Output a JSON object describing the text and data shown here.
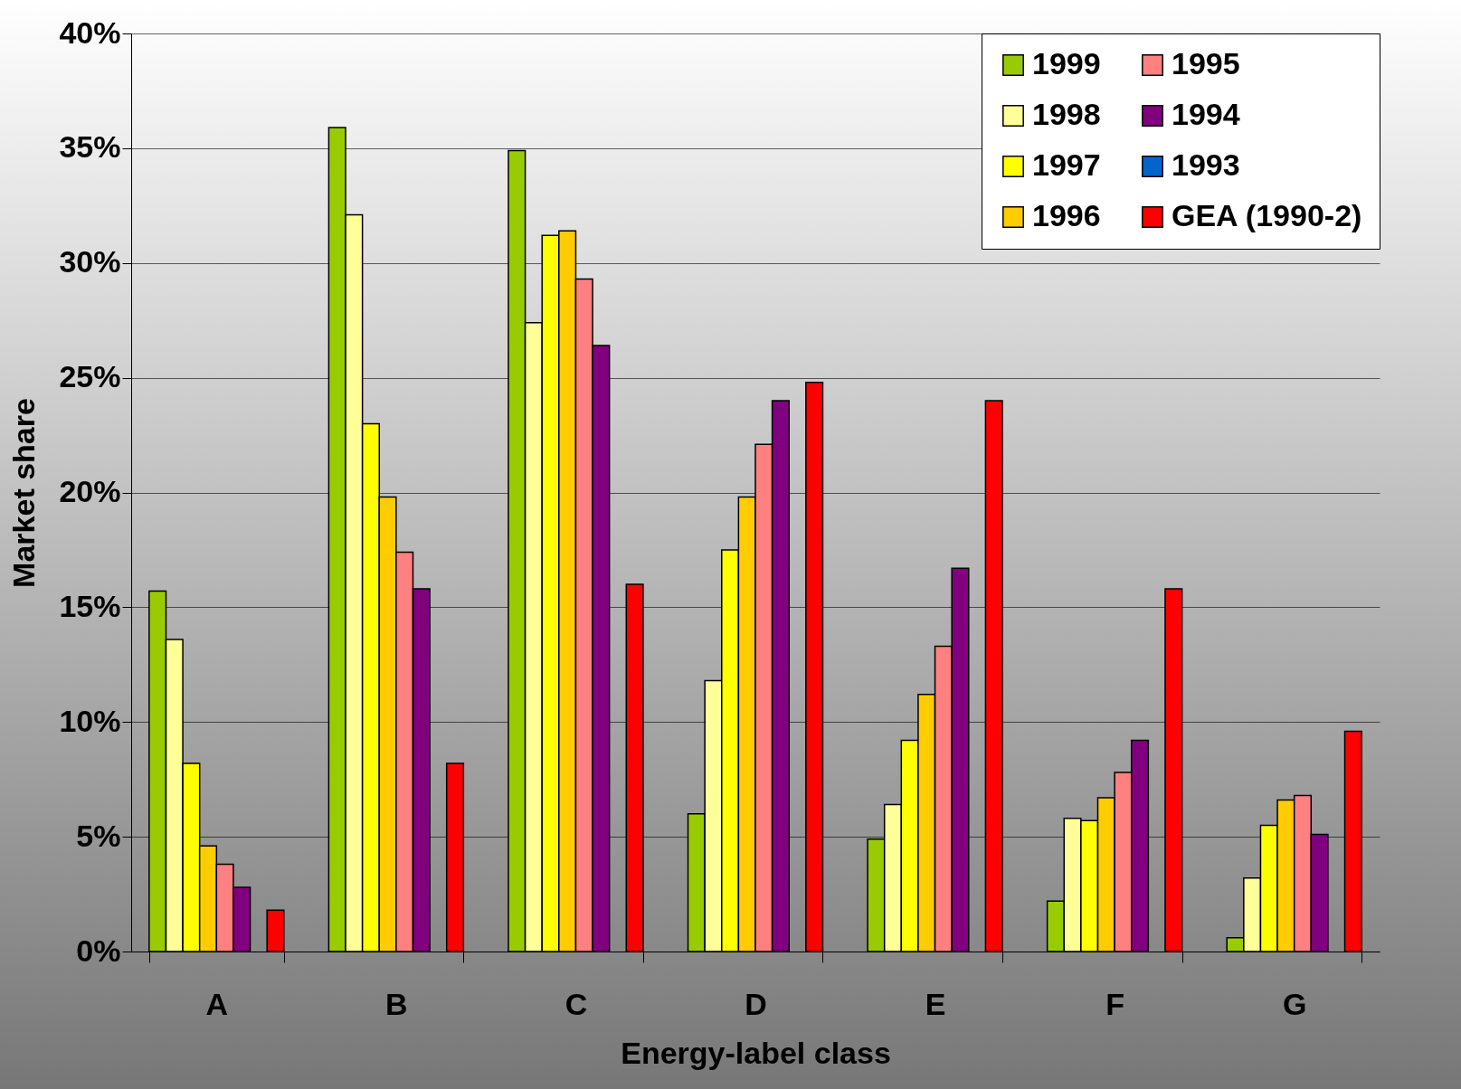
{
  "chart_data": {
    "type": "bar",
    "xlabel": "Energy-label class",
    "ylabel": "Market share",
    "categories": [
      "A",
      "B",
      "C",
      "D",
      "E",
      "F",
      "G"
    ],
    "series": [
      {
        "name": "1999",
        "color": "#99cc00",
        "values": [
          15.7,
          35.9,
          34.9,
          6.0,
          4.9,
          2.2,
          0.6
        ]
      },
      {
        "name": "1998",
        "color": "#ffff99",
        "values": [
          13.6,
          32.1,
          27.4,
          11.8,
          6.4,
          5.8,
          3.2
        ]
      },
      {
        "name": "1997",
        "color": "#ffff00",
        "values": [
          8.2,
          23.0,
          31.2,
          17.5,
          9.2,
          5.7,
          5.5
        ]
      },
      {
        "name": "1996",
        "color": "#ffcc00",
        "values": [
          4.6,
          19.8,
          31.4,
          19.8,
          11.2,
          6.7,
          6.6
        ]
      },
      {
        "name": "1995",
        "color": "#ff8080",
        "values": [
          3.8,
          17.4,
          29.3,
          22.1,
          13.3,
          7.8,
          6.8
        ]
      },
      {
        "name": "1994",
        "color": "#800080",
        "values": [
          2.8,
          15.8,
          26.4,
          24.0,
          16.7,
          9.2,
          5.1
        ]
      },
      {
        "name": "1993",
        "color": "#0066cc",
        "values": [
          null,
          null,
          null,
          null,
          null,
          null,
          null
        ]
      },
      {
        "name": "GEA (1990-2)",
        "color": "#ff0000",
        "values": [
          1.8,
          8.2,
          16.0,
          24.8,
          24.0,
          15.8,
          9.6
        ]
      }
    ],
    "ylim": [
      0,
      40
    ],
    "yticks": [
      {
        "value": 0,
        "label": "0%"
      },
      {
        "value": 5,
        "label": "5%"
      },
      {
        "value": 10,
        "label": "10%"
      },
      {
        "value": 15,
        "label": "15%"
      },
      {
        "value": 20,
        "label": "20%"
      },
      {
        "value": 25,
        "label": "25%"
      },
      {
        "value": 30,
        "label": "30%"
      },
      {
        "value": 35,
        "label": "35%"
      },
      {
        "value": 40,
        "label": "40%"
      }
    ],
    "grid": "y",
    "legend": "top right"
  }
}
